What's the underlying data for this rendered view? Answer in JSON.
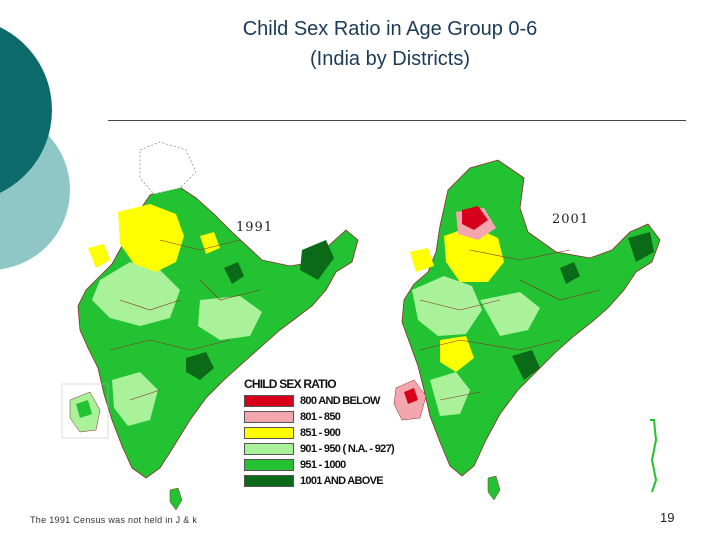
{
  "title": {
    "line1": "Child Sex Ratio in Age Group 0-6",
    "line2": "(India by Districts)"
  },
  "maps": {
    "left_year": "1991",
    "right_year": "2001"
  },
  "legend": {
    "title": "CHILD SEX RATIO",
    "items": [
      {
        "label": "800 AND BELOW",
        "color": "#d7001a"
      },
      {
        "label": "801 - 850",
        "color": "#f4a6ae"
      },
      {
        "label": "851 - 900",
        "color": "#ffff00"
      },
      {
        "label": "901 - 950 ( N.A. - 927)",
        "color": "#a9f29a"
      },
      {
        "label": "951 - 1000",
        "color": "#22c232"
      },
      {
        "label": "1001 AND ABOVE",
        "color": "#0a6a17"
      }
    ]
  },
  "footnote": "The 1991 Census was not held in J & k",
  "page_number": "19",
  "colors": {
    "title": "#1a3a56",
    "teal_dark": "#0d6b6b",
    "teal_light": "#8fc7c7"
  }
}
